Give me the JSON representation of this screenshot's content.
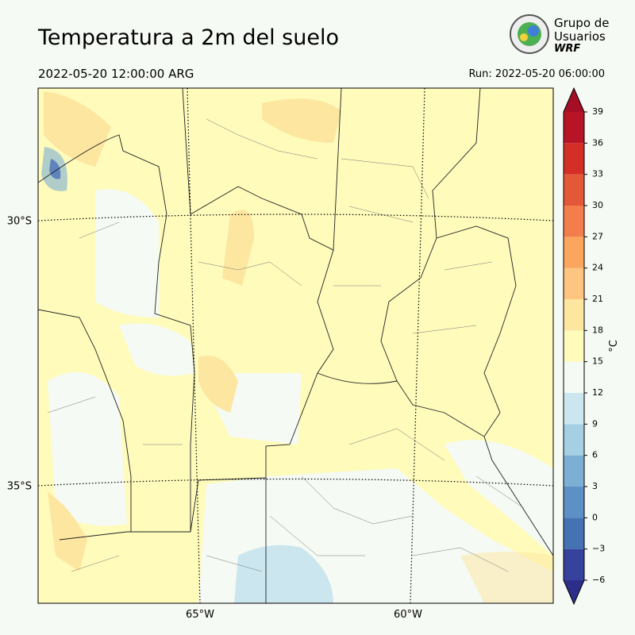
{
  "header": {
    "title": "Temperatura a 2m del suelo",
    "valid_time": "2022-05-20 12:00:00 ARG",
    "run": "Run: 2022-05-20 06:00:00"
  },
  "logo": {
    "line1": "Grupo de",
    "line2": "Usuarios",
    "line3": "WRF"
  },
  "map": {
    "lat_labels": [
      "30°S",
      "35°S"
    ],
    "lon_labels": [
      "65°W",
      "60°W"
    ]
  },
  "colorbar": {
    "label": "°C",
    "ticks": [
      {
        "value": -6,
        "label": "−6"
      },
      {
        "value": -3,
        "label": "−3"
      },
      0,
      3,
      6,
      9,
      12,
      15,
      18,
      21,
      24,
      27,
      30,
      33,
      36,
      39
    ],
    "colors": [
      "#36429b",
      "#4472b3",
      "#5d90c4",
      "#7bafd4",
      "#a5cfe3",
      "#cbe6ef",
      "#f5faf4",
      "#fefbbb",
      "#fde6a0",
      "#fdc580",
      "#fba55f",
      "#f47e4b",
      "#e35839",
      "#d32f27",
      "#b81428"
    ],
    "under": "#2c2f8a",
    "over": "#a50f26"
  }
}
